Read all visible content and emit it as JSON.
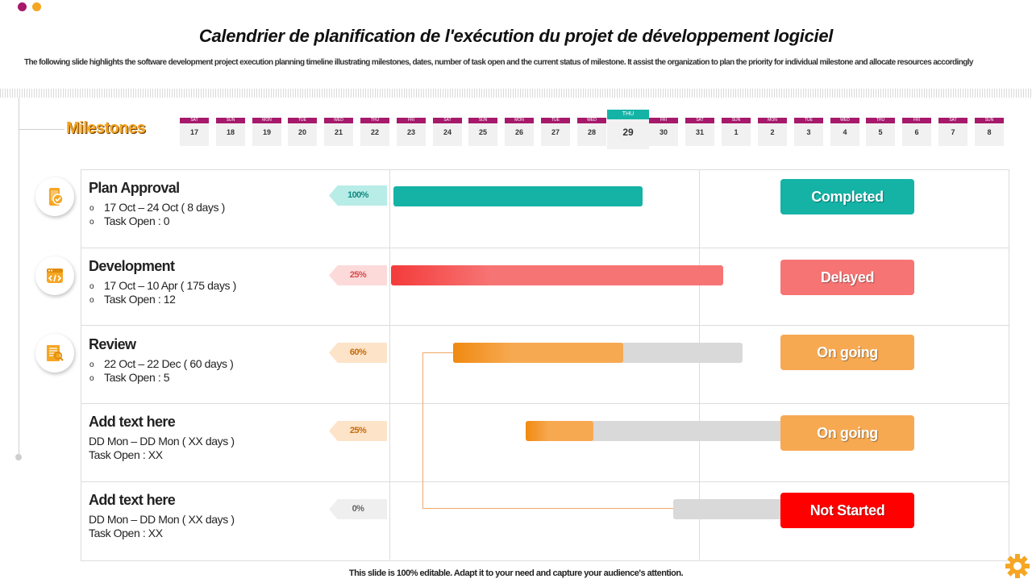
{
  "title": "Calendrier de planification de l'exécution  du projet de développement logiciel",
  "subtitle": "The following slide highlights the software development project execution planning timeline illustrating milestones, dates, number of task open and the current status of milestone. It assist the organization to plan the priority for individual milestone and allocate resources accordingly",
  "milestones_label": "Milestones",
  "calendar": [
    {
      "dow": "SAT",
      "day": "17"
    },
    {
      "dow": "SUN",
      "day": "18"
    },
    {
      "dow": "MON",
      "day": "19"
    },
    {
      "dow": "TUE",
      "day": "20"
    },
    {
      "dow": "WED",
      "day": "21"
    },
    {
      "dow": "THU",
      "day": "22"
    },
    {
      "dow": "FRI",
      "day": "23"
    },
    {
      "dow": "SAT",
      "day": "24"
    },
    {
      "dow": "SUN",
      "day": "25"
    },
    {
      "dow": "MON",
      "day": "26"
    },
    {
      "dow": "TUE",
      "day": "27"
    },
    {
      "dow": "WED",
      "day": "28"
    },
    {
      "dow": "THU",
      "day": "29",
      "highlight": true
    },
    {
      "dow": "FRI",
      "day": "30"
    },
    {
      "dow": "SAT",
      "day": "31"
    },
    {
      "dow": "SUN",
      "day": "1"
    },
    {
      "dow": "MON",
      "day": "2"
    },
    {
      "dow": "TUE",
      "day": "3"
    },
    {
      "dow": "WED",
      "day": "4"
    },
    {
      "dow": "THU",
      "day": "5"
    },
    {
      "dow": "FRI",
      "day": "6"
    },
    {
      "dow": "SAT",
      "day": "7"
    },
    {
      "dow": "SUN",
      "day": "8"
    }
  ],
  "rows": [
    {
      "name": "Plan Approval",
      "dates": "17 Oct – 24 Oct ( 8 days )",
      "tasks": "Task Open : 0",
      "bulleted": true,
      "icon": "phone-check-icon",
      "percent": "100%",
      "status": "Completed",
      "status_color": "#14b3a6"
    },
    {
      "name": "Development",
      "dates": "17 Oct – 10 Apr ( 175 days )",
      "tasks": "Task Open : 12",
      "bulleted": true,
      "icon": "code-window-icon",
      "percent": "25%",
      "status": "Delayed",
      "status_color": "#f77474"
    },
    {
      "name": "Review",
      "dates": "22 Oct – 22 Dec ( 60 days )",
      "tasks": "Task Open : 5",
      "bulleted": true,
      "icon": "document-search-icon",
      "percent": "60%",
      "status": "On going",
      "status_color": "#f7a952"
    },
    {
      "name": "Add text here",
      "dates": "DD Mon – DD Mon ( XX days )",
      "tasks": "Task Open : XX",
      "bulleted": false,
      "icon": "",
      "percent": "25%",
      "status": "On going",
      "status_color": "#f7a952"
    },
    {
      "name": "Add text here",
      "dates": "DD Mon – DD Mon ( XX days )",
      "tasks": "Task Open : XX",
      "bulleted": false,
      "icon": "",
      "percent": "0%",
      "status": "Not Started",
      "status_color": "#ff0000"
    }
  ],
  "footer": "This slide is 100% editable. Adapt it to your need and capture your audience's attention.",
  "colors": {
    "accent_magenta": "#a6196b",
    "accent_orange": "#f5a623",
    "teal": "#14b3a6",
    "coral": "#f77474",
    "orange": "#f7a952",
    "red": "#ff0000"
  }
}
